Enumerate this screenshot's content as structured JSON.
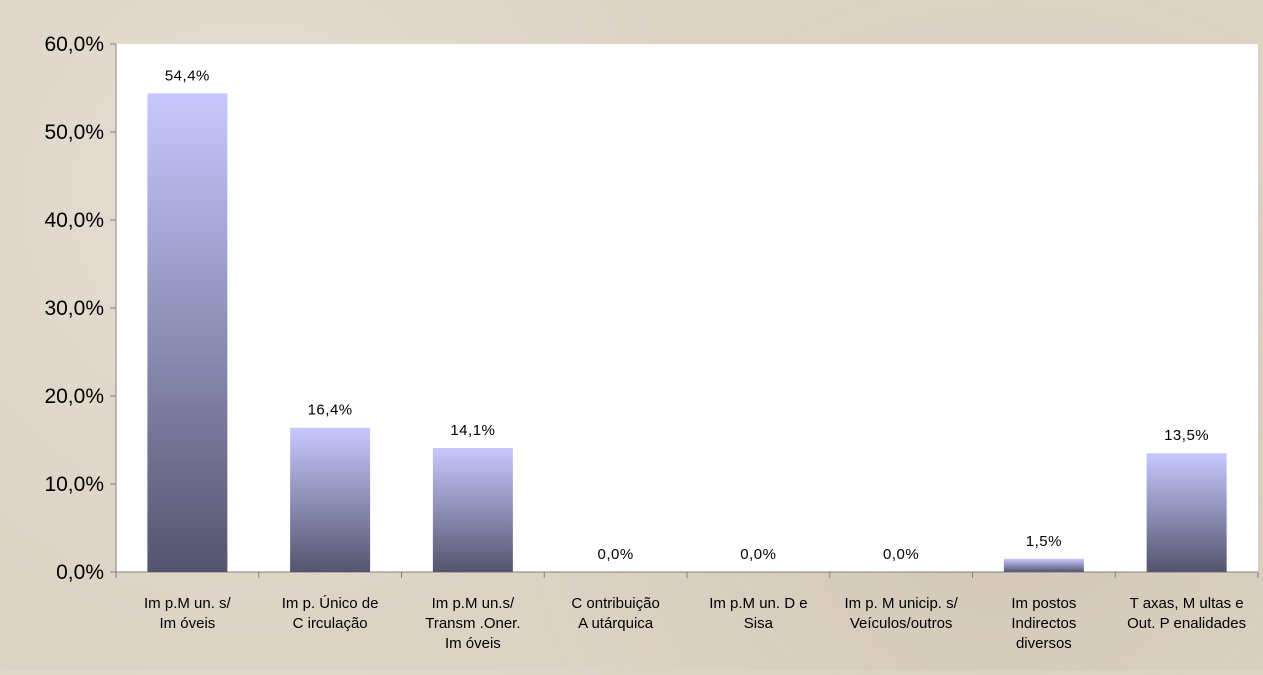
{
  "chart_data": {
    "type": "bar",
    "categories": [
      [
        "Im p.M un. s/",
        "Im óveis"
      ],
      [
        "Im p. Único de",
        "C irculação"
      ],
      [
        "Im p.M un.s/",
        "Transm .Oner.",
        "Im óveis"
      ],
      [
        "C ontribuição",
        "A utárquica"
      ],
      [
        "Im p.M un. D e",
        "Sisa"
      ],
      [
        "Im p. M unicip. s/",
        "Veículos/outros"
      ],
      [
        "Im postos",
        "Indirectos",
        "diversos"
      ],
      [
        "T axas, M ultas e",
        "Out. P enalidades"
      ]
    ],
    "values": [
      54.4,
      16.4,
      14.1,
      0.0,
      0.0,
      0.0,
      1.5,
      13.5
    ],
    "value_labels": [
      "54,4%",
      "16,4%",
      "14,1%",
      "0,0%",
      "0,0%",
      "0,0%",
      "1,5%",
      "13,5%"
    ],
    "ylim": [
      0,
      60
    ],
    "yticks": [
      0,
      10,
      20,
      30,
      40,
      50,
      60
    ],
    "ytick_labels": [
      "0,0%",
      "10,0%",
      "20,0%",
      "30,0%",
      "40,0%",
      "50,0%",
      "60,0%"
    ],
    "title": "",
    "xlabel": "",
    "ylabel": "",
    "grid": false,
    "colors": {
      "bar_top": "#c8c8ff",
      "bar_bottom": "#55546e",
      "plot_background": "#ffffff",
      "axis": "#808080",
      "text": "#000000"
    }
  }
}
